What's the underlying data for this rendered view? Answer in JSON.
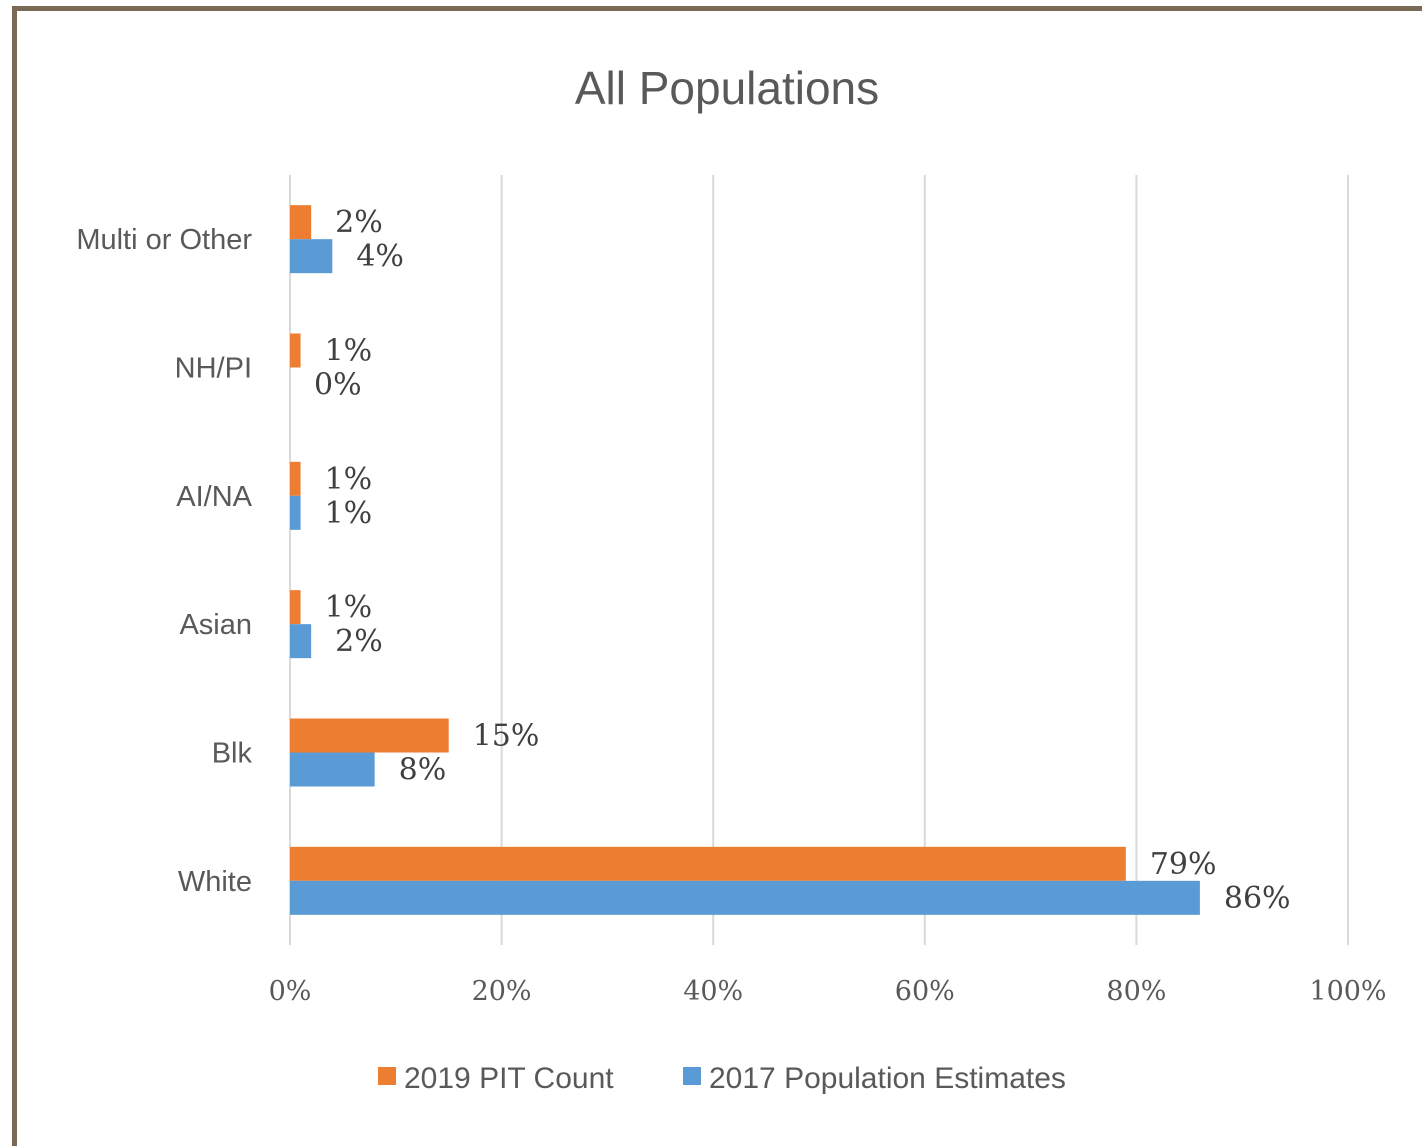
{
  "chart_data": {
    "type": "bar",
    "orientation": "horizontal",
    "title": "All Populations",
    "categories": [
      "White",
      "Blk",
      "Asian",
      "AI/NA",
      "NH/PI",
      "Multi or Other"
    ],
    "series": [
      {
        "name": "2019 PIT Count",
        "color": "#ed7d31",
        "values": [
          79,
          15,
          1,
          1,
          1,
          2
        ],
        "labels": [
          "79%",
          "15%",
          "1%",
          "1%",
          "1%",
          "2%"
        ]
      },
      {
        "name": "2017 Population Estimates",
        "color": "#5b9bd5",
        "values": [
          86,
          8,
          2,
          1,
          0,
          4
        ],
        "labels": [
          "86%",
          "8%",
          "2%",
          "1%",
          "0%",
          "4%"
        ]
      }
    ],
    "xlim": [
      0,
      100
    ],
    "xticks": [
      "0%",
      "20%",
      "40%",
      "60%",
      "80%",
      "100%"
    ],
    "grid": true,
    "legend": "bottom"
  }
}
